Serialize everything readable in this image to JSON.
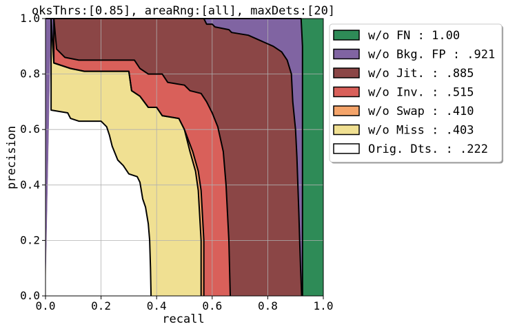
{
  "chart_data": {
    "type": "area",
    "title": "oksThrs:[0.85], areaRng:[all], maxDets:[20]",
    "xlabel": "recall",
    "ylabel": "precision",
    "xlim": [
      0,
      1
    ],
    "ylim": [
      0,
      1
    ],
    "xticks": [
      "0.0",
      "0.2",
      "0.4",
      "0.6",
      "0.8",
      "1.0"
    ],
    "yticks": [
      "0.0",
      "0.2",
      "0.4",
      "0.6",
      "0.8",
      "1.0"
    ],
    "grid": true,
    "legend_position": "outside-right",
    "series": [
      {
        "name": "w/o FN",
        "score": "1.00",
        "color": "#2e8b57",
        "points": [
          [
            0,
            1
          ],
          [
            1,
            1
          ],
          [
            1,
            0
          ],
          [
            0,
            0
          ]
        ]
      },
      {
        "name": "w/o Bkg. FP",
        "score": ".921",
        "color": "#8064a2",
        "points": [
          [
            0,
            1
          ],
          [
            0.92,
            1
          ],
          [
            0.925,
            0.9
          ],
          [
            0.925,
            0
          ]
        ]
      },
      {
        "name": "w/o Jit.",
        "score": ".885",
        "color": "#8b4646",
        "points": [
          [
            0.03,
            1
          ],
          [
            0.57,
            1
          ],
          [
            0.58,
            0.98
          ],
          [
            0.6,
            0.98
          ],
          [
            0.61,
            0.97
          ],
          [
            0.66,
            0.96
          ],
          [
            0.67,
            0.95
          ],
          [
            0.73,
            0.94
          ],
          [
            0.82,
            0.9
          ],
          [
            0.85,
            0.88
          ],
          [
            0.87,
            0.85
          ],
          [
            0.885,
            0.8
          ],
          [
            0.89,
            0.7
          ],
          [
            0.9,
            0.6
          ],
          [
            0.905,
            0.5
          ],
          [
            0.912,
            0.3
          ],
          [
            0.915,
            0.2
          ],
          [
            0.918,
            0.1
          ],
          [
            0.922,
            0
          ]
        ]
      },
      {
        "name": "w/o Inv.",
        "score": ".515",
        "color": "#d9605a",
        "points": [
          [
            0.03,
            1
          ],
          [
            0.04,
            0.89
          ],
          [
            0.07,
            0.86
          ],
          [
            0.12,
            0.85
          ],
          [
            0.32,
            0.85
          ],
          [
            0.34,
            0.82
          ],
          [
            0.37,
            0.8
          ],
          [
            0.42,
            0.8
          ],
          [
            0.44,
            0.77
          ],
          [
            0.5,
            0.76
          ],
          [
            0.52,
            0.74
          ],
          [
            0.56,
            0.73
          ],
          [
            0.58,
            0.7
          ],
          [
            0.6,
            0.66
          ],
          [
            0.62,
            0.61
          ],
          [
            0.64,
            0.52
          ],
          [
            0.65,
            0.4
          ],
          [
            0.66,
            0.2
          ],
          [
            0.665,
            0
          ]
        ]
      },
      {
        "name": "w/o Swap",
        "score": ".410",
        "color": "#f4a46a",
        "points": [
          [
            0.03,
            1
          ],
          [
            0.03,
            0.84
          ],
          [
            0.09,
            0.82
          ],
          [
            0.14,
            0.81
          ],
          [
            0.3,
            0.81
          ],
          [
            0.31,
            0.74
          ],
          [
            0.34,
            0.72
          ],
          [
            0.37,
            0.68
          ],
          [
            0.4,
            0.68
          ],
          [
            0.42,
            0.65
          ],
          [
            0.48,
            0.64
          ],
          [
            0.5,
            0.6
          ],
          [
            0.53,
            0.52
          ],
          [
            0.55,
            0.45
          ],
          [
            0.56,
            0.38
          ],
          [
            0.57,
            0.2
          ],
          [
            0.57,
            0
          ]
        ]
      },
      {
        "name": "w/o Miss",
        "score": ".403",
        "color": "#f0e092",
        "points": [
          [
            0.02,
            1
          ],
          [
            0.03,
            0.84
          ],
          [
            0.09,
            0.82
          ],
          [
            0.14,
            0.81
          ],
          [
            0.3,
            0.81
          ],
          [
            0.31,
            0.74
          ],
          [
            0.34,
            0.72
          ],
          [
            0.37,
            0.68
          ],
          [
            0.4,
            0.68
          ],
          [
            0.42,
            0.65
          ],
          [
            0.48,
            0.64
          ],
          [
            0.5,
            0.6
          ],
          [
            0.52,
            0.52
          ],
          [
            0.54,
            0.45
          ],
          [
            0.55,
            0.38
          ],
          [
            0.56,
            0.2
          ],
          [
            0.56,
            0
          ]
        ]
      },
      {
        "name": "Orig. Dts.",
        "score": ".222",
        "color": "#ffffff",
        "points": [
          [
            0.02,
            1
          ],
          [
            0.02,
            0.67
          ],
          [
            0.08,
            0.66
          ],
          [
            0.09,
            0.64
          ],
          [
            0.12,
            0.63
          ],
          [
            0.2,
            0.63
          ],
          [
            0.22,
            0.61
          ],
          [
            0.23,
            0.58
          ],
          [
            0.24,
            0.54
          ],
          [
            0.26,
            0.49
          ],
          [
            0.28,
            0.47
          ],
          [
            0.3,
            0.44
          ],
          [
            0.33,
            0.43
          ],
          [
            0.34,
            0.41
          ],
          [
            0.35,
            0.35
          ],
          [
            0.36,
            0.32
          ],
          [
            0.37,
            0.26
          ],
          [
            0.375,
            0.2
          ],
          [
            0.378,
            0.1
          ],
          [
            0.38,
            0
          ]
        ]
      }
    ]
  }
}
